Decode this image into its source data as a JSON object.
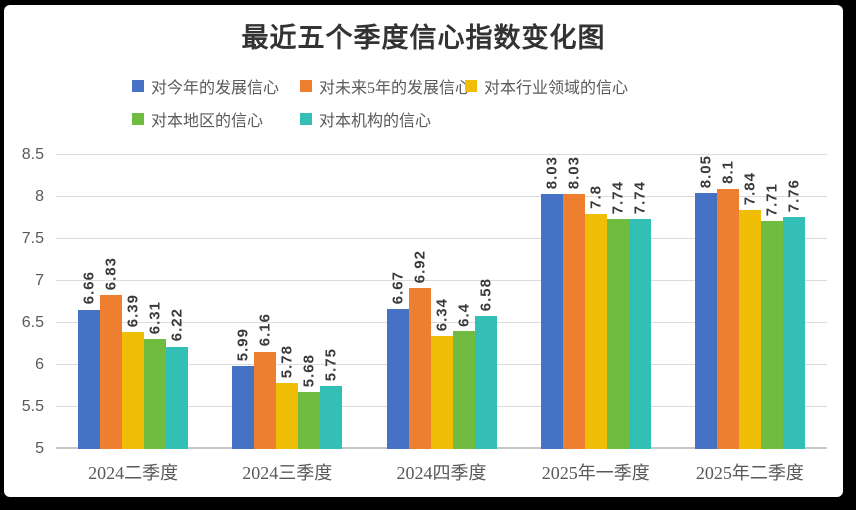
{
  "frame": {
    "background": "#000000",
    "card_background": "#ffffff"
  },
  "chart_data": {
    "type": "bar",
    "title": "最近五个季度信心指数变化图",
    "categories": [
      "2024二季度",
      "2024三季度",
      "2024四季度",
      "2025年一季度",
      "2025年二季度"
    ],
    "series": [
      {
        "name": "对今年的发展信心",
        "color": "#4672C6",
        "values": [
          6.66,
          5.99,
          6.67,
          8.03,
          8.05
        ],
        "labels": [
          "6.66",
          "5.99",
          "6.67",
          "8.03",
          "8.05"
        ]
      },
      {
        "name": "对未来5年的发展信心",
        "color": "#EE7E30",
        "values": [
          6.83,
          6.16,
          6.92,
          8.03,
          8.1
        ],
        "labels": [
          "6.83",
          "6.16",
          "6.92",
          "8.03",
          "8.1"
        ]
      },
      {
        "name": "对本行业领域的信心",
        "color": "#F0BE07",
        "values": [
          6.39,
          5.78,
          6.34,
          7.8,
          7.84
        ],
        "labels": [
          "6.39",
          "5.78",
          "6.34",
          "7.8",
          "7.84"
        ]
      },
      {
        "name": "对本地区的信心",
        "color": "#70BC41",
        "values": [
          6.31,
          5.68,
          6.4,
          7.74,
          7.71
        ],
        "labels": [
          "6.31",
          "5.68",
          "6.4",
          "7.74",
          "7.71"
        ]
      },
      {
        "name": "对本机构的信心",
        "color": "#33BFB5",
        "values": [
          6.22,
          5.75,
          6.58,
          7.74,
          7.76
        ],
        "labels": [
          "6.22",
          "5.75",
          "6.58",
          "7.74",
          "7.76"
        ]
      }
    ],
    "ylim": [
      5,
      8.5
    ],
    "ytick_step": 0.5,
    "yticks": [
      "5",
      "5.5",
      "6",
      "6.5",
      "7",
      "7.5",
      "8",
      "8.5"
    ],
    "grid": true,
    "legend_position": "top",
    "data_label_rotation": "vertical-bottom-to-top"
  }
}
